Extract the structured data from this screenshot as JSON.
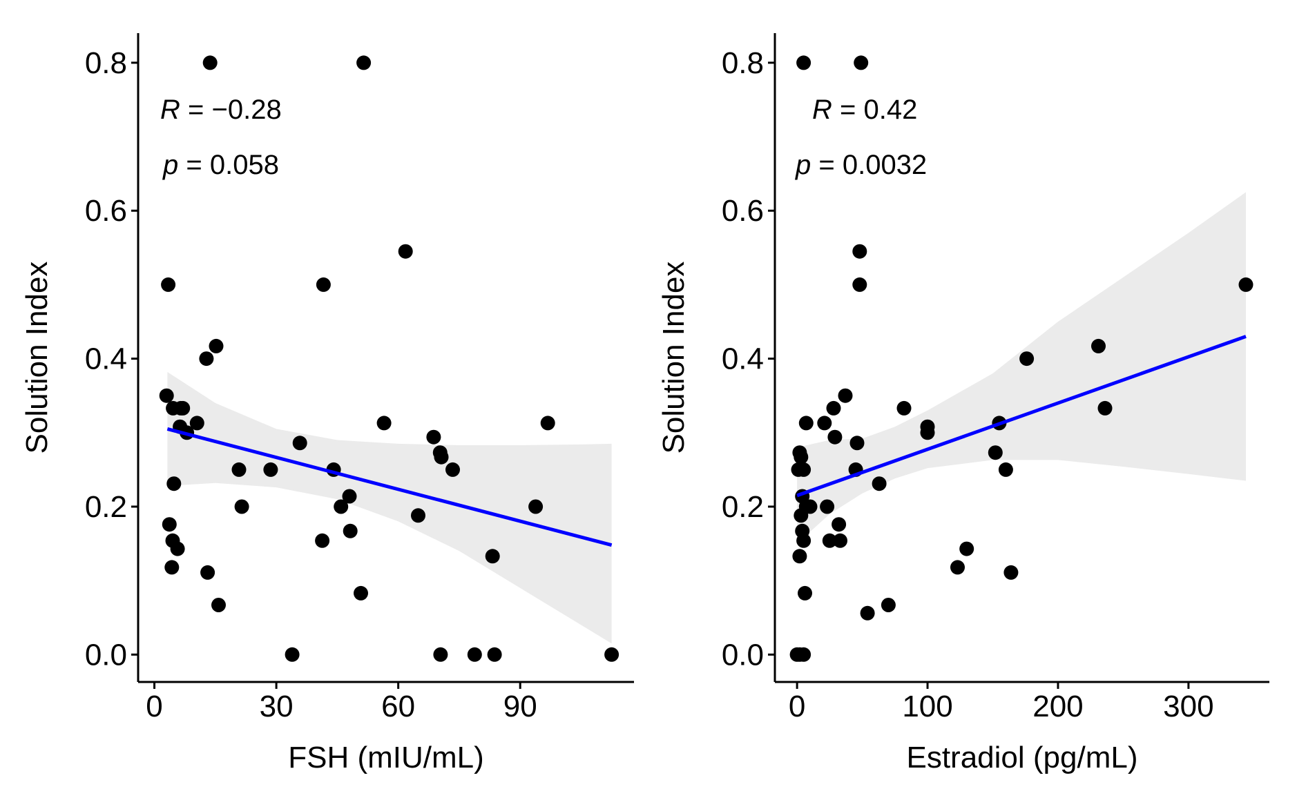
{
  "chart_data": [
    {
      "type": "scatter",
      "xlabel": "FSH (mIU/mL)",
      "ylabel": "Solution Index",
      "xlim": [
        -4,
        118
      ],
      "ylim": [
        -0.037,
        0.84
      ],
      "xticks": [
        0,
        30,
        60,
        90
      ],
      "yticks": [
        0.0,
        0.2,
        0.4,
        0.6,
        0.8
      ],
      "ytick_labels": [
        "0.0",
        "0.2",
        "0.4",
        "0.6",
        "0.8"
      ],
      "annotation": {
        "r_symbol": "R",
        "r_text": " = −0.28",
        "p_symbol": "p",
        "p_text": " = 0.058"
      },
      "regression": {
        "x": [
          3.2,
          112.5
        ],
        "y": [
          0.305,
          0.148
        ]
      },
      "confidence_band": {
        "x": [
          3.2,
          15,
          30,
          45,
          60,
          75,
          90,
          105,
          112.5
        ],
        "lower": [
          0.228,
          0.232,
          0.226,
          0.21,
          0.18,
          0.14,
          0.09,
          0.04,
          0.015
        ],
        "upper": [
          0.382,
          0.34,
          0.305,
          0.29,
          0.285,
          0.283,
          0.283,
          0.284,
          0.285
        ]
      },
      "points": {
        "x": [
          13.7,
          51.5,
          3.0,
          41.6,
          61.8,
          15.2,
          12.8,
          3.4,
          4.6,
          6.5,
          7.0,
          10.5,
          56.5,
          96.8,
          6.3,
          8.0,
          68.7,
          70.3,
          70.6,
          73.4,
          35.8,
          44.1,
          28.6,
          20.8,
          4.8,
          93.8,
          45.9,
          48.0,
          21.5,
          64.9,
          41.3,
          48.2,
          83.2,
          3.7,
          4.5,
          5.7,
          4.3,
          13.1,
          50.8,
          15.8,
          33.9,
          70.4,
          78.8,
          83.7,
          112.5
        ],
        "y": [
          0.8,
          0.8,
          0.35,
          0.5,
          0.545,
          0.417,
          0.4,
          0.5,
          0.333,
          0.333,
          0.333,
          0.313,
          0.313,
          0.313,
          0.308,
          0.3,
          0.294,
          0.273,
          0.267,
          0.25,
          0.286,
          0.25,
          0.25,
          0.25,
          0.231,
          0.2,
          0.2,
          0.214,
          0.2,
          0.188,
          0.154,
          0.167,
          0.133,
          0.176,
          0.154,
          0.143,
          0.118,
          0.111,
          0.083,
          0.067,
          0.0,
          0.0,
          0.0,
          0.0,
          0.0
        ]
      }
    },
    {
      "type": "scatter",
      "xlabel": "Estradiol (pg/mL)",
      "ylabel": "Solution Index",
      "xlim": [
        -17,
        362
      ],
      "ylim": [
        -0.037,
        0.84
      ],
      "xticks": [
        0,
        100,
        200,
        300
      ],
      "yticks": [
        0.0,
        0.2,
        0.4,
        0.6,
        0.8
      ],
      "ytick_labels": [
        "0.0",
        "0.2",
        "0.4",
        "0.6",
        "0.8"
      ],
      "annotation": {
        "r_symbol": "R",
        "r_text": " = 0.42",
        "p_symbol": "p",
        "p_text": " = 0.0032"
      },
      "regression": {
        "x": [
          0,
          344
        ],
        "y": [
          0.215,
          0.43
        ]
      },
      "confidence_band": {
        "x": [
          0,
          25,
          50,
          75,
          100,
          150,
          200,
          250,
          300,
          344
        ],
        "lower": [
          0.15,
          0.19,
          0.218,
          0.238,
          0.252,
          0.263,
          0.263,
          0.254,
          0.244,
          0.235
        ],
        "upper": [
          0.28,
          0.29,
          0.292,
          0.308,
          0.33,
          0.38,
          0.45,
          0.51,
          0.57,
          0.625
        ]
      },
      "points": {
        "x": [
          5,
          49,
          48,
          48,
          344,
          37,
          231,
          176,
          28,
          82,
          236,
          7,
          21,
          155,
          100,
          100,
          29,
          152,
          2,
          46,
          3,
          160,
          5,
          63,
          45,
          1,
          4,
          7,
          10,
          23,
          3,
          4,
          32,
          5,
          25,
          33,
          2,
          130,
          123,
          164,
          6,
          70,
          54,
          0,
          2,
          5
        ],
        "y": [
          0.8,
          0.8,
          0.545,
          0.5,
          0.5,
          0.35,
          0.417,
          0.4,
          0.333,
          0.333,
          0.333,
          0.313,
          0.313,
          0.313,
          0.308,
          0.3,
          0.294,
          0.273,
          0.273,
          0.286,
          0.267,
          0.25,
          0.25,
          0.231,
          0.25,
          0.25,
          0.214,
          0.2,
          0.2,
          0.2,
          0.188,
          0.167,
          0.176,
          0.154,
          0.154,
          0.154,
          0.133,
          0.143,
          0.118,
          0.111,
          0.083,
          0.067,
          0.056,
          0.0,
          0.0,
          0.0
        ]
      }
    }
  ],
  "colors": {
    "point": "#000000",
    "regression_line": "#0000ff",
    "confidence_band": "#ebebeb",
    "axis": "#000000"
  }
}
